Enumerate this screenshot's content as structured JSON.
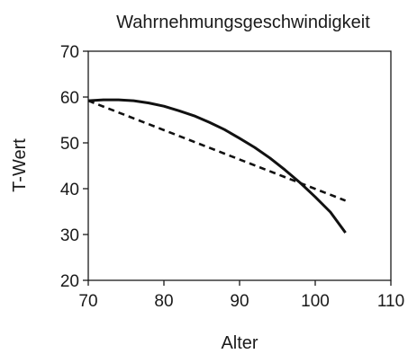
{
  "chart_data": {
    "type": "line",
    "title": "Wahrnehmungsgeschwindigkeit",
    "xlabel": "Alter",
    "ylabel": "T-Wert",
    "xlim": [
      70,
      110
    ],
    "ylim": [
      20,
      70
    ],
    "xticks": [
      70,
      80,
      90,
      100,
      110
    ],
    "yticks": [
      20,
      30,
      40,
      50,
      60,
      70
    ],
    "grid": false,
    "series": [
      {
        "style": "solid",
        "x": [
          70,
          72,
          74,
          76,
          78,
          80,
          82,
          84,
          86,
          88,
          90,
          92,
          94,
          96,
          98,
          100,
          102,
          104
        ],
        "y": [
          59.2,
          59.4,
          59.4,
          59.2,
          58.7,
          58.0,
          57.0,
          55.9,
          54.5,
          52.9,
          51.0,
          49.0,
          46.7,
          44.1,
          41.3,
          38.2,
          34.9,
          30.4
        ]
      },
      {
        "style": "dashed",
        "x": [
          70,
          104
        ],
        "y": [
          59.2,
          37.4
        ]
      }
    ]
  }
}
